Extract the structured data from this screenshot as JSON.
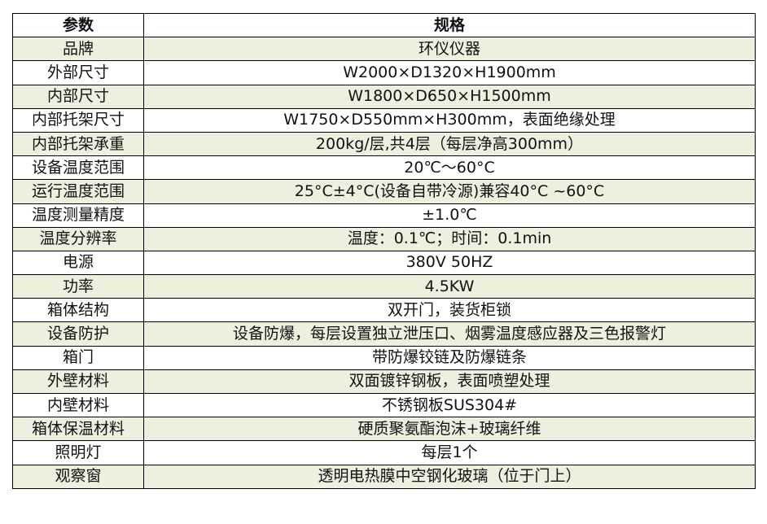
{
  "header": {
    "param": "参数",
    "spec": "规格"
  },
  "row_colors": {
    "alternate": "#ebf1de",
    "base": "#ffffff"
  },
  "rows": [
    {
      "param": "品牌",
      "spec": "环仪仪器"
    },
    {
      "param": "外部尺寸",
      "spec": "W2000×D1320×H1900mm"
    },
    {
      "param": "内部尺寸",
      "spec": "W1800×D650×H1500mm"
    },
    {
      "param": "内部托架尺寸",
      "spec": "W1750×D550mm×H300mm，表面绝缘处理"
    },
    {
      "param": "内部托架承重",
      "spec": "200kg/层,共4层（每层净高300mm）"
    },
    {
      "param": "设备温度范围",
      "spec": "20℃～60°C"
    },
    {
      "param": "运行温度范围",
      "spec": "25°C±4°C(设备自带冷源)兼容40°C ~60°C"
    },
    {
      "param": "温度测量精度",
      "spec": "±1.0℃"
    },
    {
      "param": "温度分辨率",
      "spec": "温度：0.1℃；时间：0.1min"
    },
    {
      "param": "电源",
      "spec": "380V 50HZ"
    },
    {
      "param": "功率",
      "spec": "4.5KW"
    },
    {
      "param": "箱体结构",
      "spec": "双开门，装货柜锁"
    },
    {
      "param": "设备防护",
      "spec": "设备防爆，每层设置独立泄压口、烟雾温度感应器及三色报警灯"
    },
    {
      "param": "箱门",
      "spec": "带防爆铰链及防爆链条"
    },
    {
      "param": "外壁材料",
      "spec": "双面镀锌钢板，表面喷塑处理"
    },
    {
      "param": "内壁材料",
      "spec": "不锈钢板SUS304#"
    },
    {
      "param": "箱体保温材料",
      "spec": "硬质聚氨酯泡沫+玻璃纤维"
    },
    {
      "param": "照明灯",
      "spec": "每层1个"
    },
    {
      "param": "观察窗",
      "spec": "透明电热膜中空钢化玻璃（位于门上）"
    }
  ]
}
